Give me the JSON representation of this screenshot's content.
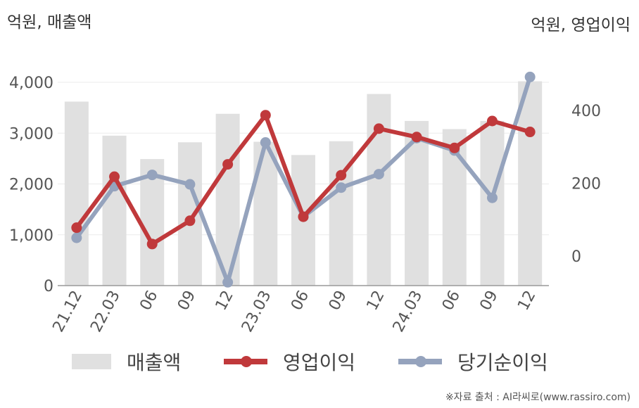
{
  "units": {
    "left": "억원, 매출액",
    "right": "억원, 영업이익"
  },
  "colors": {
    "bar": "#e0e0e0",
    "operating_profit": "#c0393b",
    "net_income": "#95a3bd",
    "axis": "#999999",
    "grid": "#ebebeb"
  },
  "chart_data": {
    "type": "bar+line",
    "categories": [
      "21.12",
      "22.03",
      "06",
      "09",
      "12",
      "23.03",
      "06",
      "09",
      "12",
      "24.03",
      "06",
      "09",
      "12"
    ],
    "series": [
      {
        "name": "매출액",
        "type": "bar",
        "axis": "left",
        "values": [
          3620,
          2950,
          2490,
          2820,
          3380,
          2830,
          2570,
          2840,
          3770,
          3240,
          3080,
          3240,
          4020
        ]
      },
      {
        "name": "영업이익",
        "type": "line",
        "axis": "right",
        "values": [
          78,
          218,
          33,
          97,
          252,
          387,
          108,
          222,
          350,
          327,
          297,
          371,
          341
        ]
      },
      {
        "name": "당기순이익",
        "type": "line",
        "axis": "right",
        "values": [
          50,
          192,
          223,
          197,
          -72,
          312,
          108,
          188,
          225,
          324,
          290,
          160,
          492
        ]
      }
    ],
    "left_axis": {
      "ylim": [
        0,
        4000
      ],
      "ticks": [
        "0",
        "1,000",
        "2,000",
        "3,000",
        "4,000"
      ]
    },
    "right_axis": {
      "ylim": [
        0,
        400
      ],
      "ticks": [
        "0",
        "200",
        "400"
      ]
    },
    "grid": true,
    "legend_position": "bottom"
  },
  "legend": [
    {
      "label": "매출액"
    },
    {
      "label": "영업이익"
    },
    {
      "label": "당기순이익"
    }
  ],
  "source": "※자료 출처 : AI라씨로(www.rassiro.com)"
}
